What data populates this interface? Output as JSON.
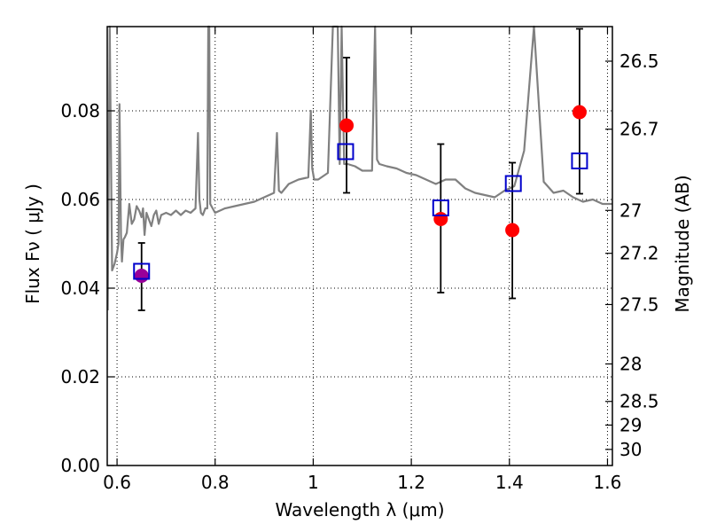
{
  "chart_data": {
    "type": "scatter",
    "xlabel": "Wavelength  λ (μm)",
    "ylabel": "Flux  Fν  ( μJy )",
    "y2label": "Magnitude (AB)",
    "xlim": [
      0.58,
      1.61
    ],
    "ylim": [
      0.0,
      0.099
    ],
    "grid": true,
    "x_ticks": [
      0.6,
      0.8,
      1.0,
      1.2,
      1.4,
      1.6
    ],
    "x_tick_labels": [
      "0.6",
      "0.8",
      "1",
      "1.2",
      "1.4",
      "1.6"
    ],
    "y_ticks": [
      0.0,
      0.02,
      0.04,
      0.06,
      0.08
    ],
    "y_tick_labels": [
      "0.00",
      "0.02",
      "0.04",
      "0.06",
      "0.08"
    ],
    "magnitude_ticks": [
      "26.5",
      "26.7",
      "27",
      "27.2",
      "27.5",
      "28",
      "28.5",
      "29",
      "30"
    ],
    "series": [
      {
        "kind": "errorbar",
        "color": "#000000",
        "points": [
          {
            "x": 0.65,
            "low": 0.035,
            "high": 0.0502
          },
          {
            "x": 1.068,
            "low": 0.0615,
            "high": 0.092
          },
          {
            "x": 1.26,
            "low": 0.039,
            "high": 0.0725
          },
          {
            "x": 1.406,
            "low": 0.0377,
            "high": 0.0683
          },
          {
            "x": 1.543,
            "low": 0.0613,
            "high": 0.0985
          }
        ]
      },
      {
        "kind": "observed",
        "marker": "circle",
        "color": "#ff0000",
        "x": [
          1.068,
          1.26,
          1.406,
          1.543
        ],
        "y": [
          0.0767,
          0.0556,
          0.0531,
          0.0797
        ]
      },
      {
        "kind": "observed",
        "marker": "circle",
        "color": "#990099",
        "x": [
          0.65
        ],
        "y": [
          0.0428
        ]
      },
      {
        "kind": "model-photometry",
        "marker": "square",
        "color": "#0000cc",
        "x": [
          0.65,
          1.066,
          1.26,
          1.408,
          1.543
        ],
        "y": [
          0.0438,
          0.0708,
          0.0581,
          0.0636,
          0.0687
        ]
      },
      {
        "kind": "model-spectrum",
        "color": "#808080",
        "x": [
          0.581,
          0.585,
          0.59,
          0.595,
          0.6,
          0.603,
          0.605,
          0.608,
          0.61,
          0.613,
          0.616,
          0.62,
          0.625,
          0.63,
          0.635,
          0.64,
          0.645,
          0.65,
          0.653,
          0.656,
          0.66,
          0.665,
          0.67,
          0.675,
          0.68,
          0.685,
          0.69,
          0.7,
          0.71,
          0.72,
          0.73,
          0.74,
          0.75,
          0.76,
          0.765,
          0.768,
          0.771,
          0.775,
          0.78,
          0.784,
          0.786,
          0.788,
          0.79,
          0.8,
          0.82,
          0.84,
          0.86,
          0.88,
          0.9,
          0.92,
          0.926,
          0.93,
          0.935,
          0.95,
          0.97,
          0.99,
          0.995,
          0.998,
          1.002,
          1.01,
          1.03,
          1.04,
          1.05,
          1.054,
          1.058,
          1.063,
          1.07,
          1.085,
          1.1,
          1.12,
          1.126,
          1.13,
          1.135,
          1.15,
          1.17,
          1.19,
          1.21,
          1.23,
          1.25,
          1.27,
          1.29,
          1.31,
          1.33,
          1.35,
          1.37,
          1.39,
          1.41,
          1.43,
          1.45,
          1.47,
          1.49,
          1.51,
          1.53,
          1.55,
          1.57,
          1.59,
          1.61
        ],
        "y": [
          0.035,
          0.099,
          0.044,
          0.0455,
          0.048,
          0.05,
          0.0815,
          0.052,
          0.046,
          0.051,
          0.0515,
          0.0525,
          0.059,
          0.0545,
          0.0555,
          0.0585,
          0.0575,
          0.056,
          0.058,
          0.052,
          0.057,
          0.0555,
          0.054,
          0.0565,
          0.0575,
          0.0545,
          0.0565,
          0.057,
          0.0565,
          0.0575,
          0.0565,
          0.0575,
          0.057,
          0.058,
          0.075,
          0.06,
          0.057,
          0.0565,
          0.058,
          0.058,
          0.099,
          0.099,
          0.059,
          0.057,
          0.058,
          0.0585,
          0.059,
          0.0595,
          0.0605,
          0.0615,
          0.075,
          0.062,
          0.0615,
          0.0635,
          0.0645,
          0.065,
          0.08,
          0.067,
          0.0645,
          0.0645,
          0.066,
          0.099,
          0.099,
          0.068,
          0.099,
          0.068,
          0.068,
          0.0675,
          0.0665,
          0.0665,
          0.099,
          0.069,
          0.068,
          0.0675,
          0.067,
          0.066,
          0.0655,
          0.0645,
          0.0635,
          0.0645,
          0.0645,
          0.0625,
          0.0615,
          0.061,
          0.0605,
          0.062,
          0.063,
          0.071,
          0.099,
          0.064,
          0.0615,
          0.062,
          0.0605,
          0.0595,
          0.06,
          0.059,
          0.059
        ]
      }
    ]
  }
}
